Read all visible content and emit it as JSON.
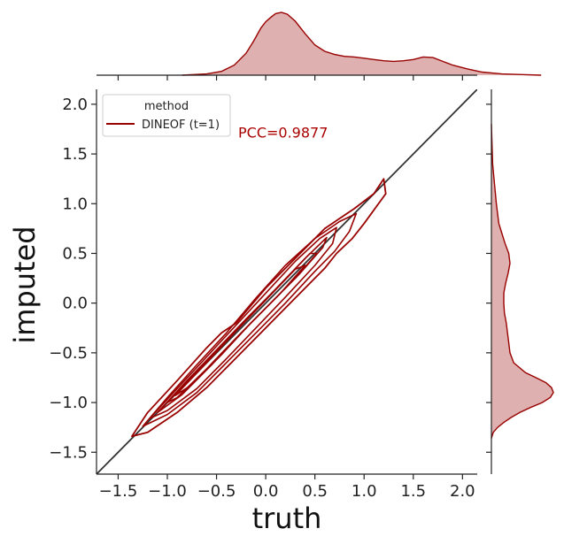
{
  "chart_data": {
    "type": "jointplot-kde",
    "xlabel": "truth",
    "ylabel": "imputed",
    "xlim": [
      -1.72,
      2.15
    ],
    "ylim": [
      -1.72,
      2.15
    ],
    "xticks": [
      "−1.5",
      "−1.0",
      "−0.5",
      "0.0",
      "0.5",
      "1.0",
      "1.5",
      "2.0"
    ],
    "yticks": [
      "−1.5",
      "−1.0",
      "−0.5",
      "0.0",
      "0.5",
      "1.0",
      "1.5",
      "2.0"
    ],
    "tick_values": [
      -1.5,
      -1.0,
      -0.5,
      0.0,
      0.5,
      1.0,
      1.5,
      2.0
    ],
    "grid": false,
    "legend": {
      "title": "method",
      "placement": "top-left",
      "entries": [
        {
          "label": "DINEOF (t=1)",
          "color": "#990000"
        }
      ]
    },
    "annotation": {
      "text": "PCC=0.9877",
      "x": -0.28,
      "y": 1.72,
      "color": "#aa0000"
    },
    "identity_line": {
      "x": [
        -1.72,
        2.15
      ],
      "y": [
        -1.72,
        2.15
      ],
      "color": "#333333"
    },
    "series": [
      {
        "name": "DINEOF (t=1)",
        "color": "#990000",
        "fill": "#dfb0b0",
        "pcc": 0.9877,
        "contours": [
          [
            [
              -1.36,
              -1.34
            ],
            [
              -1.2,
              -1.1
            ],
            [
              -0.9,
              -0.78
            ],
            [
              -0.6,
              -0.45
            ],
            [
              -0.45,
              -0.3
            ],
            [
              -0.3,
              -0.2
            ],
            [
              0.0,
              0.15
            ],
            [
              0.3,
              0.45
            ],
            [
              0.6,
              0.75
            ],
            [
              0.75,
              0.85
            ],
            [
              0.9,
              0.95
            ],
            [
              1.1,
              1.1
            ],
            [
              1.2,
              1.25
            ],
            [
              1.22,
              1.1
            ],
            [
              1.0,
              0.8
            ],
            [
              0.88,
              0.65
            ],
            [
              0.72,
              0.5
            ],
            [
              0.6,
              0.35
            ],
            [
              0.3,
              0.05
            ],
            [
              0.0,
              -0.25
            ],
            [
              -0.3,
              -0.55
            ],
            [
              -0.6,
              -0.85
            ],
            [
              -0.9,
              -1.1
            ],
            [
              -1.2,
              -1.3
            ],
            [
              -1.36,
              -1.34
            ]
          ],
          [
            [
              -1.25,
              -1.24
            ],
            [
              -1.0,
              -0.95
            ],
            [
              -0.7,
              -0.62
            ],
            [
              -0.4,
              -0.3
            ],
            [
              -0.1,
              0.05
            ],
            [
              0.2,
              0.38
            ],
            [
              0.5,
              0.65
            ],
            [
              0.75,
              0.82
            ],
            [
              0.92,
              0.9
            ],
            [
              0.85,
              0.72
            ],
            [
              0.7,
              0.52
            ],
            [
              0.5,
              0.32
            ],
            [
              0.2,
              0.0
            ],
            [
              -0.1,
              -0.3
            ],
            [
              -0.4,
              -0.6
            ],
            [
              -0.7,
              -0.9
            ],
            [
              -1.0,
              -1.12
            ],
            [
              -1.25,
              -1.24
            ]
          ],
          [
            [
              -1.18,
              -1.16
            ],
            [
              -0.9,
              -0.86
            ],
            [
              -0.6,
              -0.54
            ],
            [
              -0.3,
              -0.22
            ],
            [
              0.0,
              0.1
            ],
            [
              0.3,
              0.42
            ],
            [
              0.55,
              0.65
            ],
            [
              0.72,
              0.76
            ],
            [
              0.68,
              0.6
            ],
            [
              0.5,
              0.38
            ],
            [
              0.2,
              0.06
            ],
            [
              -0.1,
              -0.25
            ],
            [
              -0.4,
              -0.56
            ],
            [
              -0.7,
              -0.86
            ],
            [
              -1.0,
              -1.08
            ],
            [
              -1.18,
              -1.16
            ]
          ],
          [
            [
              -1.1,
              -1.1
            ],
            [
              -0.8,
              -0.78
            ],
            [
              -0.5,
              -0.47
            ],
            [
              -0.2,
              -0.16
            ],
            [
              0.1,
              0.14
            ],
            [
              0.4,
              0.45
            ],
            [
              0.62,
              0.66
            ],
            [
              0.58,
              0.56
            ],
            [
              0.35,
              0.3
            ],
            [
              0.05,
              0.0
            ],
            [
              -0.25,
              -0.3
            ],
            [
              -0.55,
              -0.62
            ],
            [
              -0.85,
              -0.92
            ],
            [
              -1.1,
              -1.1
            ]
          ],
          [
            [
              -1.0,
              -1.0
            ],
            [
              -0.7,
              -0.69
            ],
            [
              -0.4,
              -0.38
            ],
            [
              -0.1,
              -0.07
            ],
            [
              0.2,
              0.24
            ],
            [
              0.45,
              0.5
            ],
            [
              0.52,
              0.5
            ],
            [
              0.3,
              0.25
            ],
            [
              0.0,
              -0.05
            ],
            [
              -0.3,
              -0.35
            ],
            [
              -0.6,
              -0.66
            ],
            [
              -0.9,
              -0.95
            ],
            [
              -1.0,
              -1.0
            ]
          ],
          [
            [
              -0.92,
              -0.93
            ],
            [
              -0.6,
              -0.6
            ],
            [
              -0.3,
              -0.28
            ],
            [
              0.0,
              0.03
            ],
            [
              0.3,
              0.34
            ],
            [
              0.4,
              0.38
            ],
            [
              0.15,
              0.1
            ],
            [
              -0.15,
              -0.2
            ],
            [
              -0.45,
              -0.52
            ],
            [
              -0.75,
              -0.82
            ],
            [
              -0.92,
              -0.93
            ]
          ]
        ],
        "marginal_x": [
          [
            -0.85,
            0.0
          ],
          [
            -0.6,
            0.02
          ],
          [
            -0.45,
            0.06
          ],
          [
            -0.32,
            0.16
          ],
          [
            -0.2,
            0.35
          ],
          [
            -0.12,
            0.55
          ],
          [
            -0.05,
            0.75
          ],
          [
            0.0,
            0.85
          ],
          [
            0.05,
            0.92
          ],
          [
            0.1,
            0.98
          ],
          [
            0.16,
            1.0
          ],
          [
            0.22,
            0.97
          ],
          [
            0.3,
            0.86
          ],
          [
            0.4,
            0.66
          ],
          [
            0.5,
            0.48
          ],
          [
            0.6,
            0.38
          ],
          [
            0.7,
            0.33
          ],
          [
            0.8,
            0.3
          ],
          [
            0.9,
            0.29
          ],
          [
            1.0,
            0.27
          ],
          [
            1.1,
            0.25
          ],
          [
            1.2,
            0.23
          ],
          [
            1.3,
            0.22
          ],
          [
            1.4,
            0.23
          ],
          [
            1.5,
            0.25
          ],
          [
            1.6,
            0.29
          ],
          [
            1.7,
            0.28
          ],
          [
            1.8,
            0.22
          ],
          [
            1.9,
            0.16
          ],
          [
            2.05,
            0.1
          ],
          [
            2.2,
            0.05
          ],
          [
            2.4,
            0.02
          ],
          [
            2.6,
            0.01
          ],
          [
            2.8,
            0.0
          ]
        ],
        "marginal_y": [
          [
            -1.36,
            0.0
          ],
          [
            -1.3,
            0.03
          ],
          [
            -1.25,
            0.1
          ],
          [
            -1.2,
            0.2
          ],
          [
            -1.15,
            0.32
          ],
          [
            -1.1,
            0.46
          ],
          [
            -1.05,
            0.63
          ],
          [
            -1.0,
            0.82
          ],
          [
            -0.95,
            0.95
          ],
          [
            -0.9,
            1.0
          ],
          [
            -0.85,
            0.97
          ],
          [
            -0.8,
            0.88
          ],
          [
            -0.75,
            0.72
          ],
          [
            -0.7,
            0.55
          ],
          [
            -0.6,
            0.36
          ],
          [
            -0.5,
            0.3
          ],
          [
            -0.4,
            0.28
          ],
          [
            -0.3,
            0.26
          ],
          [
            -0.2,
            0.24
          ],
          [
            -0.1,
            0.21
          ],
          [
            0.0,
            0.2
          ],
          [
            0.1,
            0.2
          ],
          [
            0.2,
            0.23
          ],
          [
            0.3,
            0.27
          ],
          [
            0.4,
            0.3
          ],
          [
            0.5,
            0.28
          ],
          [
            0.6,
            0.22
          ],
          [
            0.7,
            0.17
          ],
          [
            0.8,
            0.12
          ],
          [
            1.0,
            0.08
          ],
          [
            1.2,
            0.05
          ],
          [
            1.4,
            0.02
          ],
          [
            1.6,
            0.01
          ],
          [
            1.8,
            0.0
          ]
        ]
      }
    ]
  }
}
